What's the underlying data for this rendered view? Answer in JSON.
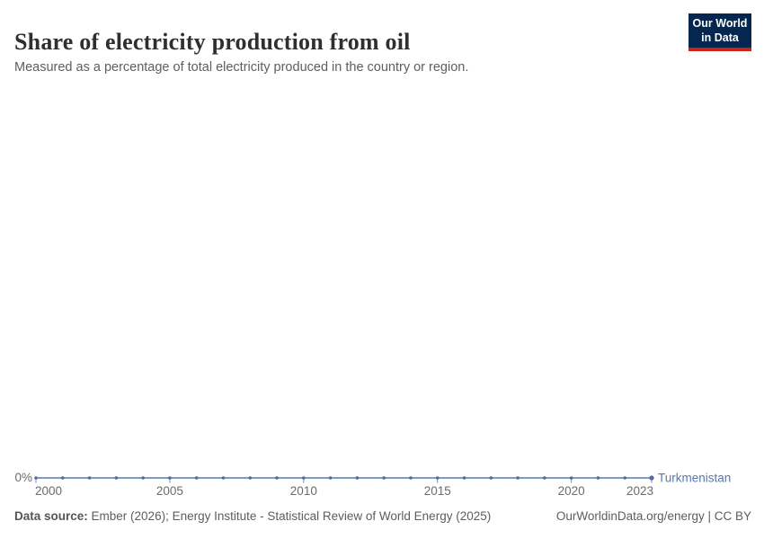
{
  "header": {
    "title": "Share of electricity production from oil",
    "subtitle": "Measured as a percentage of total electricity produced in the country or region.",
    "logo": {
      "line1": "Our World",
      "line2": "in Data"
    }
  },
  "chart_data": {
    "type": "line",
    "title": "Share of electricity production from oil",
    "x": [
      2000,
      2001,
      2002,
      2003,
      2004,
      2005,
      2006,
      2007,
      2008,
      2009,
      2010,
      2011,
      2012,
      2013,
      2014,
      2015,
      2016,
      2017,
      2018,
      2019,
      2020,
      2021,
      2022,
      2023
    ],
    "series": [
      {
        "name": "Turkmenistan",
        "values": [
          0,
          0,
          0,
          0,
          0,
          0,
          0,
          0,
          0,
          0,
          0,
          0,
          0,
          0,
          0,
          0,
          0,
          0,
          0,
          0,
          0,
          0,
          0,
          0
        ],
        "color": "#6d8ebf"
      }
    ],
    "xlabel": "",
    "ylabel": "",
    "x_ticks": [
      2000,
      2005,
      2010,
      2015,
      2020,
      2023
    ],
    "y_tick_labels": [
      "0%"
    ],
    "unit": "%",
    "xlim": [
      2000,
      2023
    ],
    "grid": false,
    "legend_position": "end-of-line"
  },
  "colors": {
    "line": "#6d8ebf",
    "point": "#4c6da2",
    "entity_label": "#5878ad",
    "tick_text": "#6b6b6b",
    "tick_mark": "#7d8b9d",
    "logo_bg": "#04264f",
    "logo_red": "#c8241c"
  },
  "footer": {
    "datasource_label": "Data source:",
    "datasource_text": " Ember (2026); Energy Institute - Statistical Review of World Energy (2025)",
    "link_text": "OurWorldinData.org/energy | CC BY"
  }
}
